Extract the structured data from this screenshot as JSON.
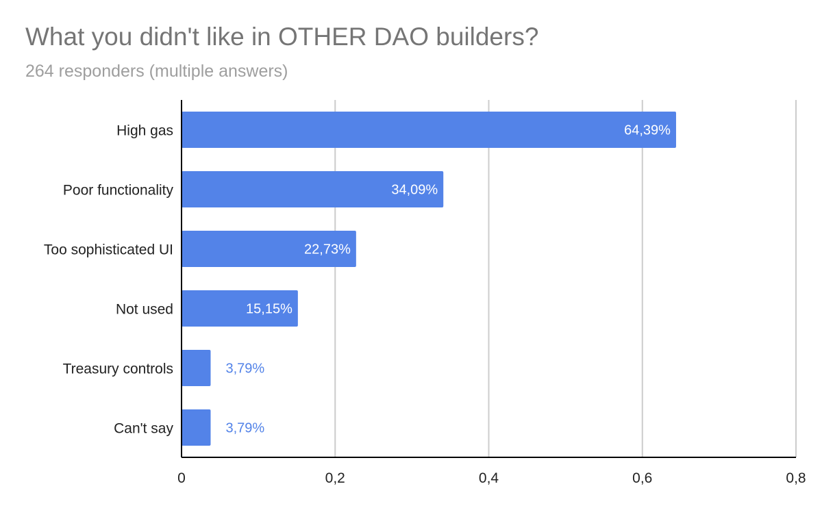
{
  "chart_data": {
    "type": "bar",
    "orientation": "horizontal",
    "title": "What you didn't like in OTHER DAO builders?",
    "subtitle": "264 responders (multiple answers)",
    "categories": [
      "High gas",
      "Poor functionality",
      "Too sophisticated UI",
      "Not used",
      "Treasury controls",
      "Can't say"
    ],
    "values": [
      0.6439,
      0.3409,
      0.2273,
      0.1515,
      0.0379,
      0.0379
    ],
    "data_labels": [
      "64,39%",
      "34,09%",
      "22,73%",
      "15,15%",
      "3,79%",
      "3,79%"
    ],
    "xlim": [
      0,
      0.8
    ],
    "xticks": [
      0,
      0.2,
      0.4,
      0.6,
      0.8
    ],
    "xtick_labels": [
      "0",
      "0,2",
      "0,4",
      "0,6",
      "0,8"
    ],
    "xlabel": "",
    "ylabel": "",
    "grid": true,
    "legend": "none",
    "colors": {
      "bar": "#5383E8",
      "label_inside": "#ffffff",
      "label_outside": "#5383E8",
      "grid": "#cccccc",
      "axis": "#000000"
    }
  }
}
